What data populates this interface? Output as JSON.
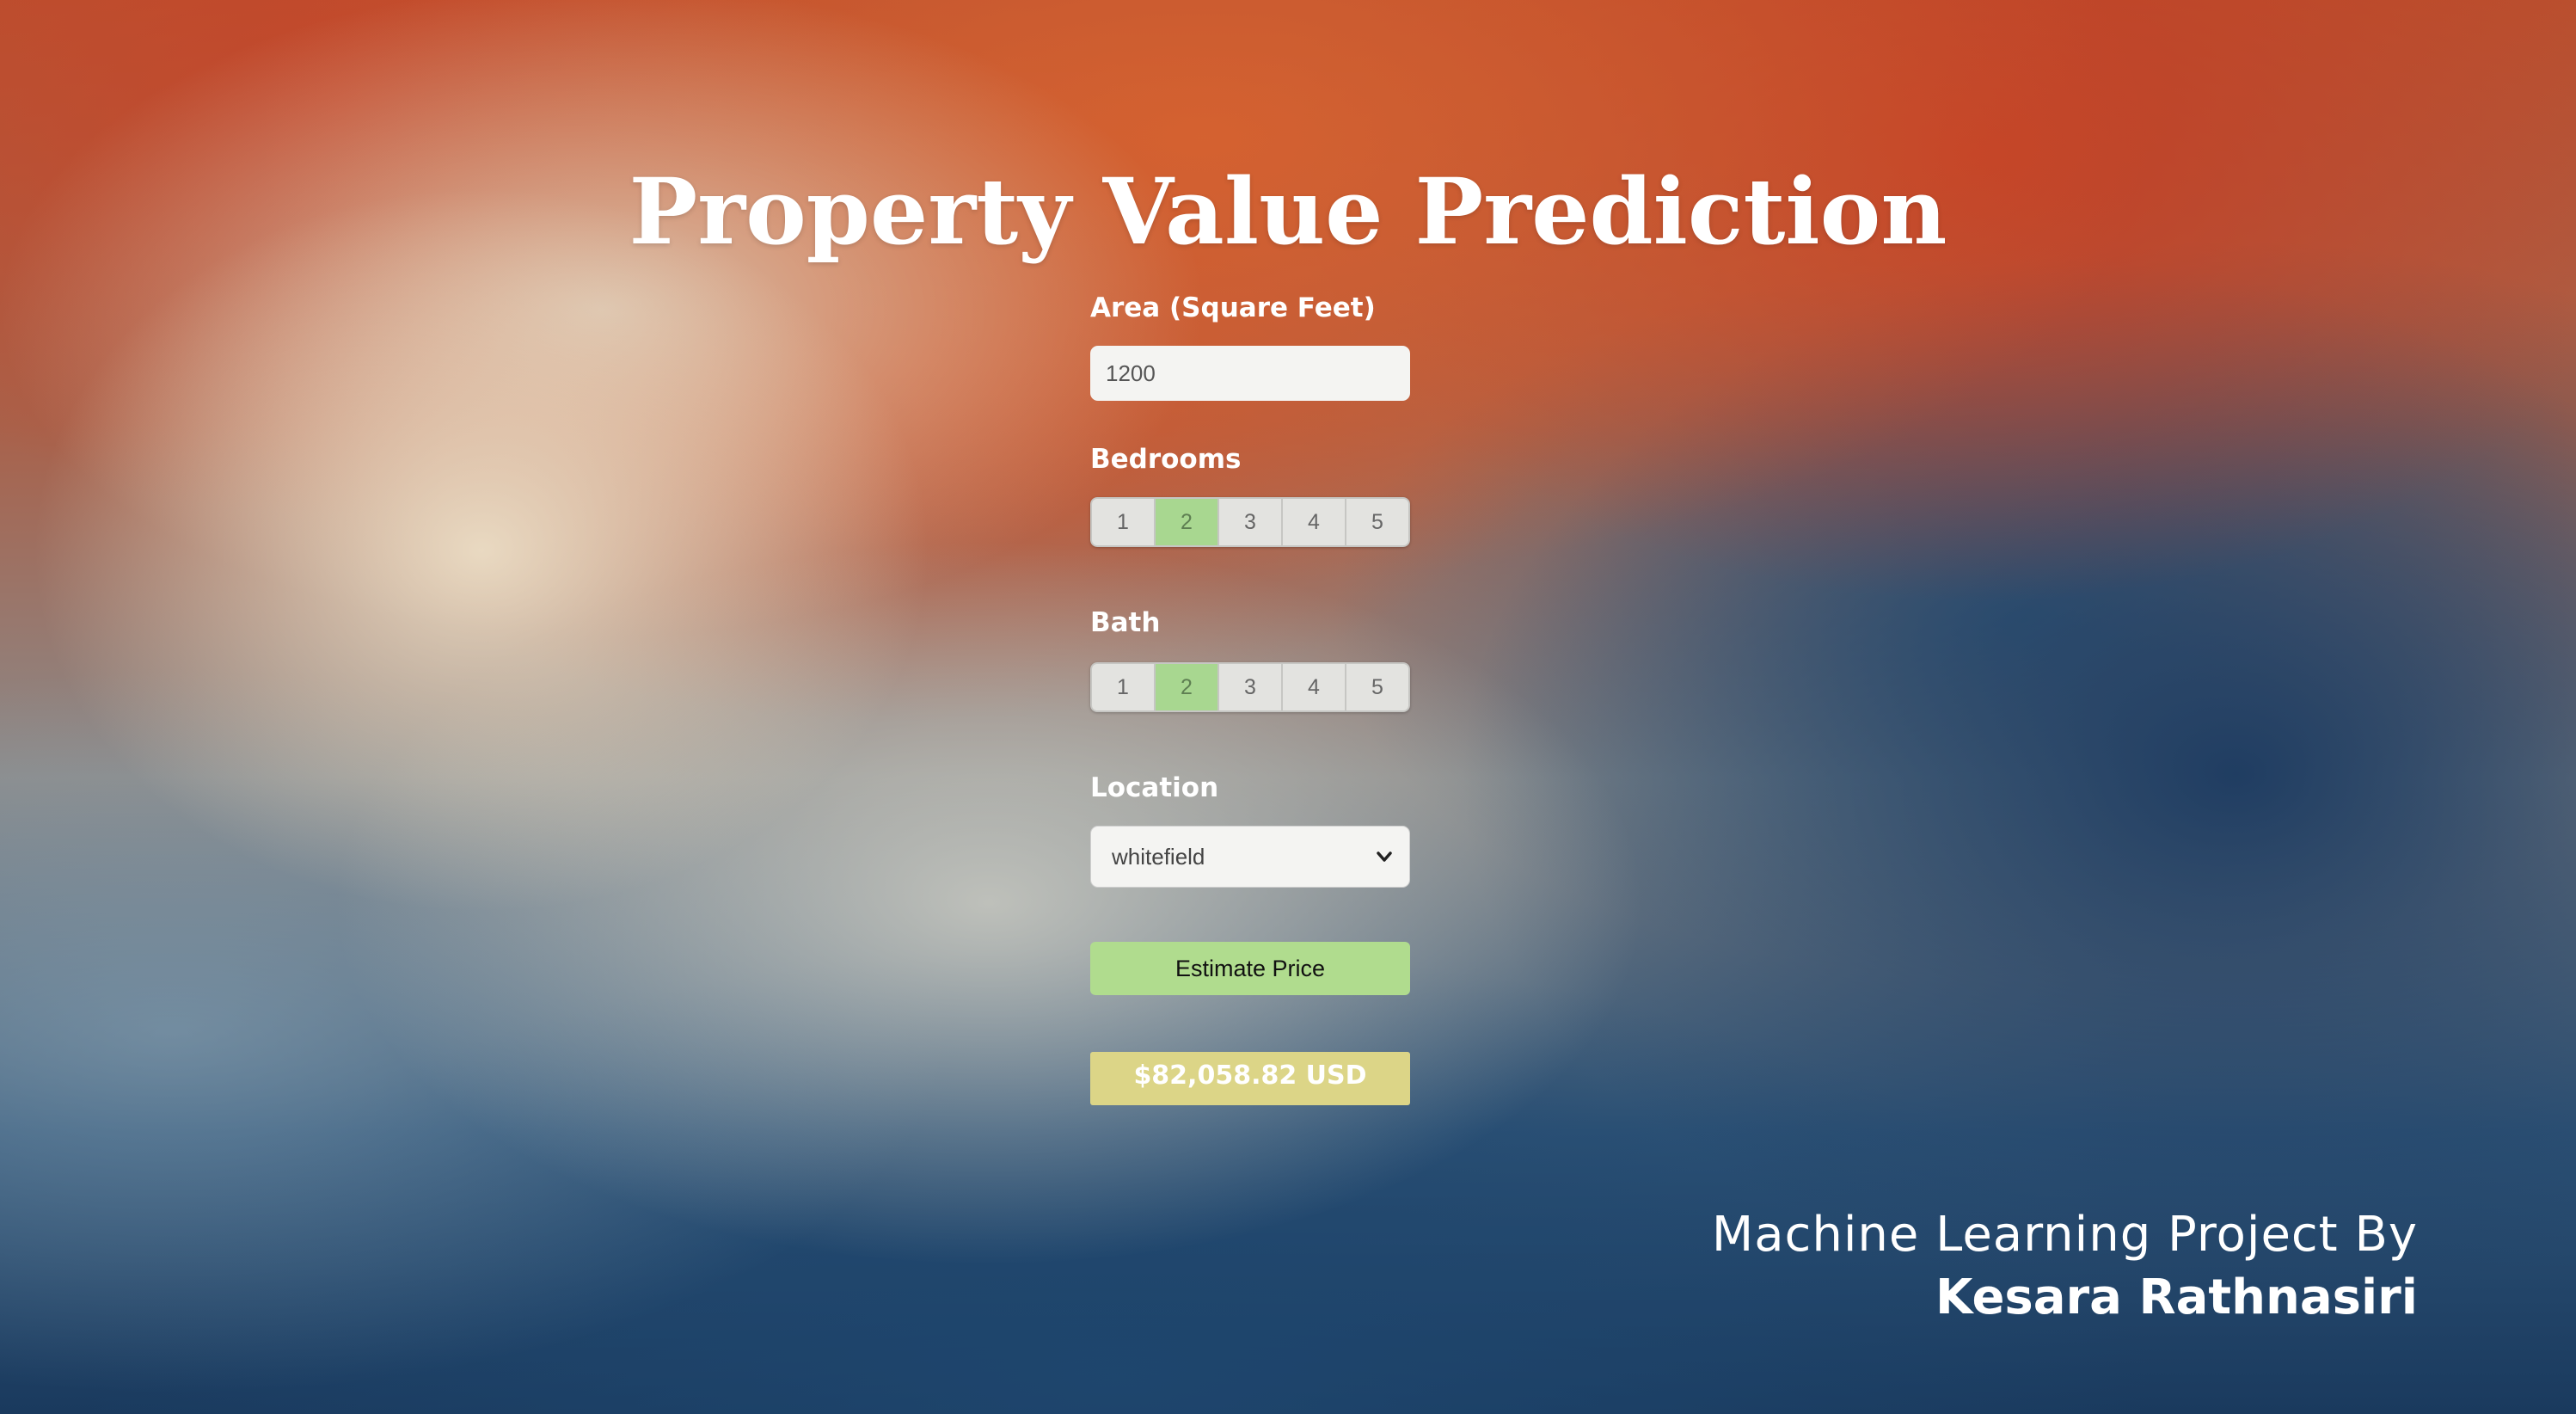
{
  "page": {
    "title": "Property Value Prediction"
  },
  "form": {
    "area": {
      "label": "Area (Square Feet)",
      "value": "1200"
    },
    "bedrooms": {
      "label": "Bedrooms",
      "options": [
        "1",
        "2",
        "3",
        "4",
        "5"
      ],
      "selected": "2"
    },
    "bath": {
      "label": "Bath",
      "options": [
        "1",
        "2",
        "3",
        "4",
        "5"
      ],
      "selected": "2"
    },
    "location": {
      "label": "Location",
      "selected": "whitefield"
    },
    "estimate_button_label": "Estimate Price",
    "result_text": "$82,058.82 USD"
  },
  "footer": {
    "line1": "Machine Learning Project By",
    "line2": "Kesara Rathnasiri"
  },
  "colors": {
    "active_segment": "#a8d790",
    "estimate_button": "#b0dc8e",
    "result_box": "#dcd587",
    "text_light": "#ffffff"
  },
  "icons": {
    "select_arrow": "chevron-down-icon"
  }
}
